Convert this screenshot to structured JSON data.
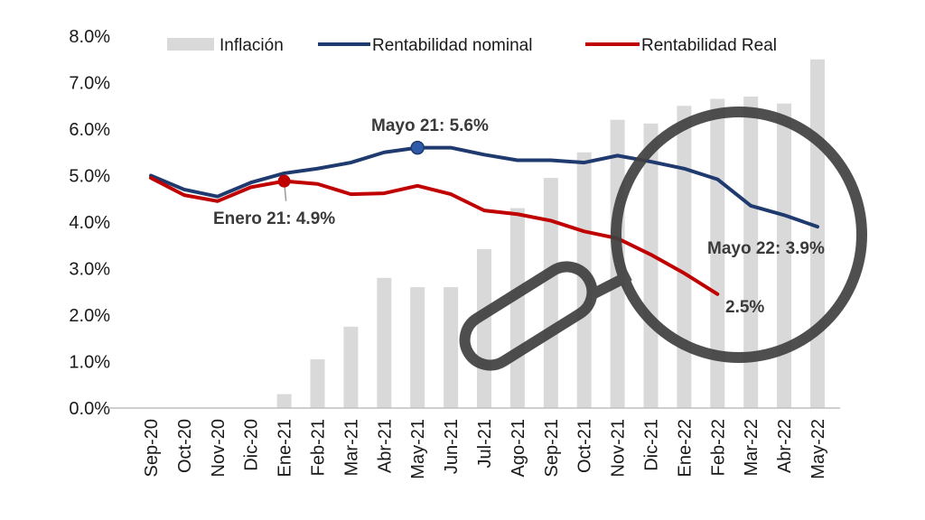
{
  "chart_data": {
    "type": "bar+line",
    "categories": [
      "Sep-20",
      "Oct-20",
      "Nov-20",
      "Dic-20",
      "Ene-21",
      "Feb-21",
      "Mar-21",
      "Abr-21",
      "May-21",
      "Jun-21",
      "Jul-21",
      "Ago-21",
      "Sep-21",
      "Oct-21",
      "Nov-21",
      "Dic-21",
      "Ene-22",
      "Feb-22",
      "Mar-22",
      "Abr-22",
      "May-22"
    ],
    "y_ticks": [
      "0.0%",
      "1.0%",
      "2.0%",
      "3.0%",
      "4.0%",
      "5.0%",
      "6.0%",
      "7.0%",
      "8.0%"
    ],
    "ylim": [
      0,
      8
    ],
    "legend_position": "top",
    "series": [
      {
        "name": "Inflación",
        "type": "bar",
        "color": "#d9d9d9",
        "values": [
          0,
          0,
          0,
          0,
          0.3,
          1.05,
          1.75,
          2.8,
          2.6,
          2.6,
          3.42,
          4.3,
          4.95,
          5.5,
          6.2,
          6.12,
          6.5,
          6.65,
          6.7,
          6.55,
          7.5
        ]
      },
      {
        "name": "Rentabilidad nominal",
        "type": "line",
        "color": "#1f3a6e",
        "values": [
          5.0,
          4.7,
          4.55,
          4.85,
          5.05,
          5.15,
          5.28,
          5.5,
          5.6,
          5.6,
          5.45,
          5.33,
          5.33,
          5.28,
          5.43,
          5.3,
          5.15,
          4.92,
          4.35,
          4.15,
          3.9
        ]
      },
      {
        "name": "Rentabilidad Real",
        "type": "line",
        "color": "#c00000",
        "values": [
          4.95,
          4.58,
          4.45,
          4.75,
          4.88,
          4.82,
          4.6,
          4.62,
          4.78,
          4.6,
          4.25,
          4.17,
          4.03,
          3.8,
          3.65,
          3.3,
          2.9,
          2.45,
          null,
          null,
          null
        ]
      }
    ],
    "annotations": [
      {
        "text": "Mayo 21: 5.6%",
        "series": 1,
        "index": 8
      },
      {
        "text": "Enero 21: 4.9%",
        "series": 2,
        "index": 4
      },
      {
        "text": "Mayo 22: 3.9%",
        "series": 1,
        "index": 20
      },
      {
        "text": "2.5%",
        "series": 2,
        "index": 17
      }
    ]
  },
  "decoration": {
    "icon": "magnifying-glass-icon",
    "color": "#404040"
  }
}
